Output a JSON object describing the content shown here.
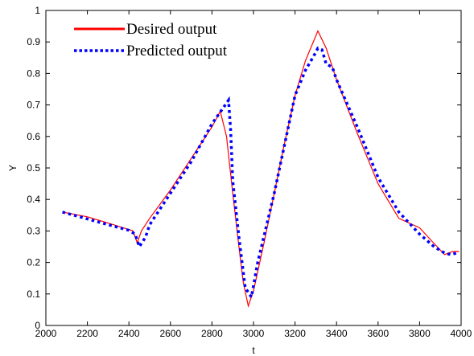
{
  "chart_data": {
    "type": "line",
    "xlabel": "t",
    "ylabel": "Y",
    "xlim": [
      2000,
      4000
    ],
    "ylim": [
      0,
      1
    ],
    "xticks": [
      2000,
      2200,
      2400,
      2600,
      2800,
      3000,
      3200,
      3400,
      3600,
      3800,
      4000
    ],
    "yticks": [
      0,
      0.1,
      0.2,
      0.3,
      0.4,
      0.5,
      0.6,
      0.7,
      0.8,
      0.9,
      1
    ],
    "grid": false,
    "legend_position": "top-left",
    "series": [
      {
        "name": "Desired output",
        "style": "solid",
        "color": "#ff0000",
        "points": [
          [
            2080,
            0.36
          ],
          [
            2200,
            0.345
          ],
          [
            2300,
            0.325
          ],
          [
            2420,
            0.3
          ],
          [
            2440,
            0.262
          ],
          [
            2460,
            0.3
          ],
          [
            2500,
            0.34
          ],
          [
            2600,
            0.43
          ],
          [
            2700,
            0.53
          ],
          [
            2800,
            0.63
          ],
          [
            2840,
            0.68
          ],
          [
            2870,
            0.6
          ],
          [
            2900,
            0.42
          ],
          [
            2930,
            0.25
          ],
          [
            2950,
            0.14
          ],
          [
            2975,
            0.062
          ],
          [
            3000,
            0.11
          ],
          [
            3050,
            0.26
          ],
          [
            3100,
            0.42
          ],
          [
            3150,
            0.58
          ],
          [
            3200,
            0.73
          ],
          [
            3250,
            0.84
          ],
          [
            3310,
            0.935
          ],
          [
            3350,
            0.88
          ],
          [
            3400,
            0.78
          ],
          [
            3500,
            0.61
          ],
          [
            3600,
            0.45
          ],
          [
            3700,
            0.34
          ],
          [
            3800,
            0.31
          ],
          [
            3870,
            0.26
          ],
          [
            3920,
            0.225
          ],
          [
            3960,
            0.235
          ],
          [
            3990,
            0.235
          ]
        ]
      },
      {
        "name": "Predicted output",
        "style": "dotted",
        "color": "#0000ff",
        "points": [
          [
            2080,
            0.36
          ],
          [
            2200,
            0.338
          ],
          [
            2300,
            0.32
          ],
          [
            2400,
            0.302
          ],
          [
            2430,
            0.29
          ],
          [
            2450,
            0.25
          ],
          [
            2480,
            0.28
          ],
          [
            2500,
            0.32
          ],
          [
            2600,
            0.42
          ],
          [
            2700,
            0.52
          ],
          [
            2800,
            0.64
          ],
          [
            2880,
            0.715
          ],
          [
            2890,
            0.62
          ],
          [
            2900,
            0.46
          ],
          [
            2930,
            0.28
          ],
          [
            2960,
            0.12
          ],
          [
            2990,
            0.09
          ],
          [
            3020,
            0.2
          ],
          [
            3100,
            0.42
          ],
          [
            3200,
            0.73
          ],
          [
            3250,
            0.81
          ],
          [
            3290,
            0.855
          ],
          [
            3310,
            0.88
          ],
          [
            3330,
            0.875
          ],
          [
            3350,
            0.83
          ],
          [
            3380,
            0.82
          ],
          [
            3400,
            0.78
          ],
          [
            3500,
            0.63
          ],
          [
            3600,
            0.47
          ],
          [
            3700,
            0.36
          ],
          [
            3800,
            0.29
          ],
          [
            3870,
            0.25
          ],
          [
            3920,
            0.23
          ],
          [
            3950,
            0.225
          ],
          [
            3990,
            0.232
          ]
        ]
      }
    ]
  }
}
